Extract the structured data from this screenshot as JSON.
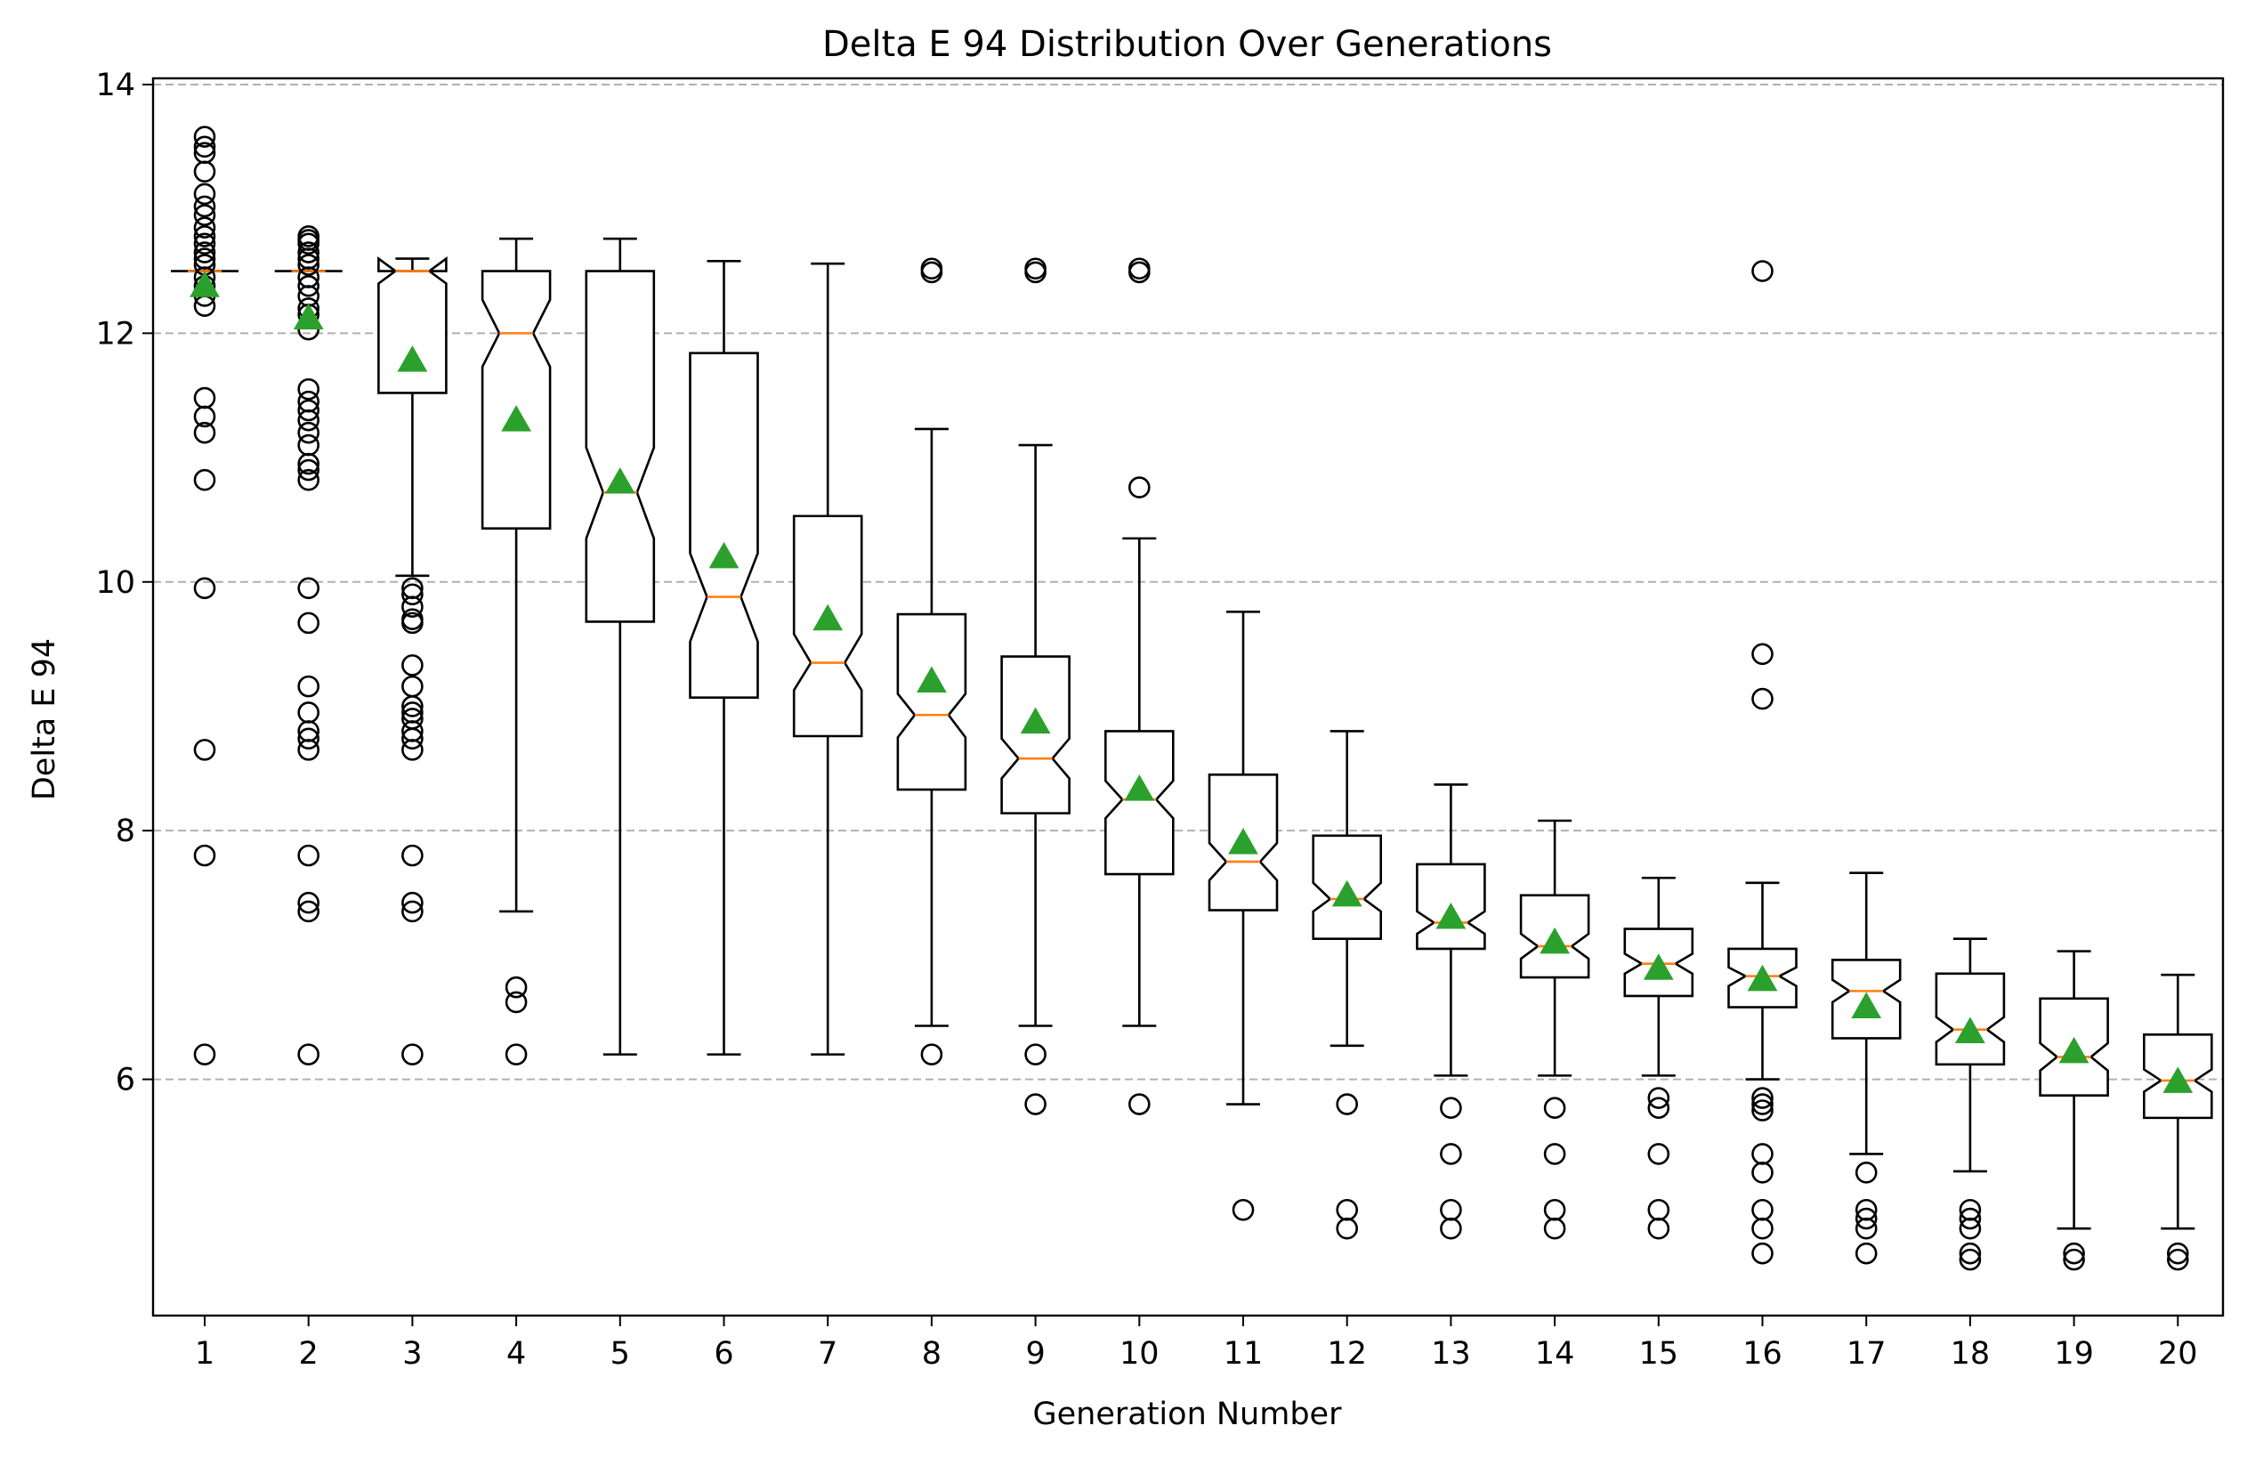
{
  "chart_data": {
    "type": "boxplot",
    "title": "Delta E 94 Distribution Over Generations",
    "xlabel": "Generation Number",
    "ylabel": "Delta E 94",
    "ylim": [
      4.1,
      14.05
    ],
    "yticks": [
      6,
      8,
      10,
      12,
      14
    ],
    "grid": "y-dashed",
    "notched": true,
    "show_means": true,
    "colors": {
      "box": "#000000",
      "median": "#ff7f0e",
      "mean": "#2ca02c",
      "grid": "#b0b0b0"
    },
    "categories": [
      "1",
      "2",
      "3",
      "4",
      "5",
      "6",
      "7",
      "8",
      "9",
      "10",
      "11",
      "12",
      "13",
      "14",
      "15",
      "16",
      "17",
      "18",
      "19",
      "20"
    ],
    "boxes": [
      {
        "whislo": 12.5,
        "q1": 12.5,
        "med": 12.5,
        "q3": 12.5,
        "whishi": 12.5,
        "mean": 12.38,
        "notch": [
          12.5,
          12.5
        ],
        "fliers": [
          13.58,
          13.5,
          13.45,
          13.3,
          13.12,
          13.02,
          12.95,
          12.85,
          12.78,
          12.72,
          12.65,
          12.6,
          12.55,
          12.45,
          12.38,
          12.3,
          12.22,
          11.48,
          11.33,
          11.2,
          10.82,
          9.95,
          8.65,
          7.8,
          6.2
        ]
      },
      {
        "whislo": 12.5,
        "q1": 12.5,
        "med": 12.5,
        "q3": 12.5,
        "whishi": 12.5,
        "mean": 12.12,
        "notch": [
          12.5,
          12.5
        ],
        "fliers": [
          12.78,
          12.75,
          12.72,
          12.65,
          12.6,
          12.55,
          12.45,
          12.38,
          12.3,
          12.2,
          12.15,
          12.03,
          11.55,
          11.45,
          11.38,
          11.3,
          11.2,
          11.1,
          10.95,
          10.9,
          10.82,
          9.95,
          9.67,
          9.16,
          8.95,
          8.8,
          8.74,
          8.65,
          7.8,
          7.42,
          7.35,
          6.2
        ]
      },
      {
        "whislo": 10.05,
        "q1": 11.52,
        "med": 12.5,
        "q3": 12.5,
        "whishi": 12.6,
        "mean": 11.78,
        "notch": [
          12.4,
          12.6
        ],
        "fliers": [
          9.95,
          9.9,
          9.8,
          9.7,
          9.67,
          9.33,
          9.16,
          9.0,
          8.95,
          8.9,
          8.8,
          8.74,
          8.65,
          7.8,
          7.42,
          7.35,
          6.2
        ]
      },
      {
        "whislo": 7.35,
        "q1": 10.43,
        "med": 12.0,
        "q3": 12.5,
        "whishi": 12.76,
        "mean": 11.3,
        "notch": [
          11.73,
          12.27
        ],
        "fliers": [
          6.74,
          6.62,
          6.2
        ]
      },
      {
        "whislo": 6.2,
        "q1": 9.68,
        "med": 10.72,
        "q3": 12.5,
        "whishi": 12.76,
        "mean": 10.8,
        "notch": [
          10.35,
          11.08
        ],
        "fliers": []
      },
      {
        "whislo": 6.2,
        "q1": 9.07,
        "med": 9.88,
        "q3": 11.84,
        "whishi": 12.58,
        "mean": 10.2,
        "notch": [
          9.52,
          10.23
        ],
        "fliers": []
      },
      {
        "whislo": 6.2,
        "q1": 8.76,
        "med": 9.35,
        "q3": 10.53,
        "whishi": 12.56,
        "mean": 9.7,
        "notch": [
          9.13,
          9.58
        ],
        "fliers": []
      },
      {
        "whislo": 6.43,
        "q1": 8.33,
        "med": 8.93,
        "q3": 9.74,
        "whishi": 11.23,
        "mean": 9.2,
        "notch": [
          8.75,
          9.1
        ],
        "fliers": [
          12.52,
          12.49,
          6.2
        ]
      },
      {
        "whislo": 6.43,
        "q1": 8.14,
        "med": 8.58,
        "q3": 9.4,
        "whishi": 11.1,
        "mean": 8.87,
        "notch": [
          8.42,
          8.74
        ],
        "fliers": [
          12.52,
          12.49,
          6.2,
          5.8
        ]
      },
      {
        "whislo": 6.43,
        "q1": 7.65,
        "med": 8.25,
        "q3": 8.8,
        "whishi": 10.35,
        "mean": 8.33,
        "notch": [
          8.1,
          8.4
        ],
        "fliers": [
          12.52,
          12.49,
          10.76,
          5.8
        ]
      },
      {
        "whislo": 5.8,
        "q1": 7.36,
        "med": 7.75,
        "q3": 8.45,
        "whishi": 9.76,
        "mean": 7.9,
        "notch": [
          7.6,
          7.9
        ],
        "fliers": [
          4.95
        ]
      },
      {
        "whislo": 6.27,
        "q1": 7.13,
        "med": 7.45,
        "q3": 7.96,
        "whishi": 8.8,
        "mean": 7.48,
        "notch": [
          7.35,
          7.58
        ],
        "fliers": [
          5.8,
          4.95,
          4.8
        ]
      },
      {
        "whislo": 6.03,
        "q1": 7.05,
        "med": 7.26,
        "q3": 7.73,
        "whishi": 8.37,
        "mean": 7.3,
        "notch": [
          7.17,
          7.35
        ],
        "fliers": [
          5.77,
          5.4,
          4.95,
          4.8
        ]
      },
      {
        "whislo": 6.03,
        "q1": 6.82,
        "med": 7.07,
        "q3": 7.48,
        "whishi": 8.08,
        "mean": 7.1,
        "notch": [
          6.97,
          7.17
        ],
        "fliers": [
          5.77,
          5.4,
          4.95,
          4.8
        ]
      },
      {
        "whislo": 6.03,
        "q1": 6.67,
        "med": 6.93,
        "q3": 7.21,
        "whishi": 7.62,
        "mean": 6.89,
        "notch": [
          6.85,
          7.01
        ],
        "fliers": [
          5.85,
          5.77,
          5.4,
          4.95,
          4.8
        ]
      },
      {
        "whislo": 6.0,
        "q1": 6.58,
        "med": 6.83,
        "q3": 7.05,
        "whishi": 7.58,
        "mean": 6.8,
        "notch": [
          6.75,
          6.9
        ],
        "fliers": [
          12.5,
          9.42,
          9.06,
          5.85,
          5.8,
          5.75,
          5.4,
          5.25,
          4.95,
          4.8,
          4.6
        ]
      },
      {
        "whislo": 5.4,
        "q1": 6.33,
        "med": 6.71,
        "q3": 6.96,
        "whishi": 7.66,
        "mean": 6.58,
        "notch": [
          6.62,
          6.8
        ],
        "fliers": [
          5.25,
          4.95,
          4.88,
          4.8,
          4.6
        ]
      },
      {
        "whislo": 5.26,
        "q1": 6.12,
        "med": 6.4,
        "q3": 6.85,
        "whishi": 7.13,
        "mean": 6.38,
        "notch": [
          6.3,
          6.5
        ],
        "fliers": [
          4.95,
          4.88,
          4.8,
          4.6,
          4.55
        ]
      },
      {
        "whislo": 4.8,
        "q1": 5.87,
        "med": 6.18,
        "q3": 6.65,
        "whishi": 7.03,
        "mean": 6.22,
        "notch": [
          6.07,
          6.29
        ],
        "fliers": [
          4.6,
          4.55
        ]
      },
      {
        "whislo": 4.8,
        "q1": 5.69,
        "med": 5.99,
        "q3": 6.36,
        "whishi": 6.84,
        "mean": 5.98,
        "notch": [
          5.9,
          6.08
        ],
        "fliers": [
          4.6,
          4.55
        ]
      }
    ]
  }
}
